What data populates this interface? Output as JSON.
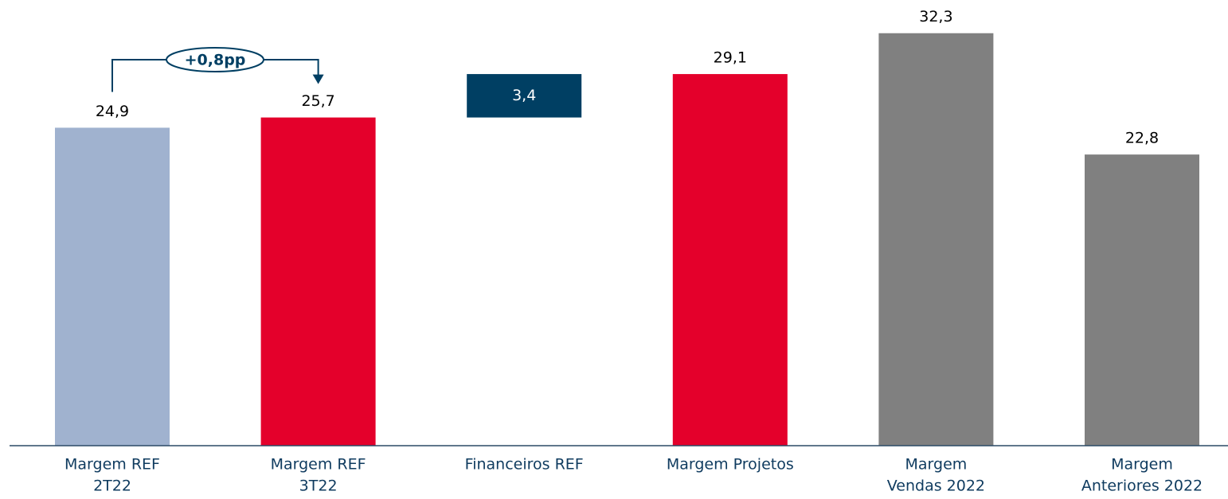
{
  "chart_data": {
    "type": "waterfall",
    "categories": [
      [
        "Margem REF",
        "2T22"
      ],
      [
        "Margem REF",
        "3T22"
      ],
      [
        "Financeiros REF"
      ],
      [
        "Margem Projetos"
      ],
      [
        "Margem",
        "Vendas 2022"
      ],
      [
        "Margem",
        "Anteriores 2022"
      ]
    ],
    "values": [
      24.9,
      25.7,
      3.4,
      29.1,
      32.3,
      22.8
    ],
    "value_labels": [
      "24,9",
      "25,7",
      "3,4",
      "29,1",
      "32,3",
      "22,8"
    ],
    "measure": [
      "absolute",
      "absolute",
      "relative",
      "absolute",
      "absolute",
      "absolute"
    ],
    "colors": [
      "#a0b2cf",
      "#e4002b",
      "#003f63",
      "#e4002b",
      "#808080",
      "#808080"
    ],
    "ylim": [
      0,
      34.9
    ],
    "annotation": "+0,8pp"
  }
}
